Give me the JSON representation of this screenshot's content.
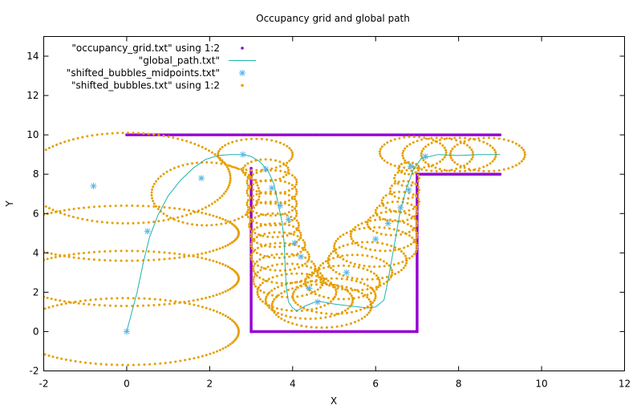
{
  "chart_data": {
    "type": "scatter",
    "title": "Occupancy grid and global path",
    "xlabel": "X",
    "ylabel": "Y",
    "xlim": [
      -2,
      12
    ],
    "ylim": [
      -2,
      15
    ],
    "xticks": [
      -2,
      0,
      2,
      4,
      6,
      8,
      10,
      12
    ],
    "yticks": [
      -2,
      0,
      2,
      4,
      6,
      8,
      10,
      12,
      14
    ],
    "legend_position": "top-left",
    "grid": false,
    "series": [
      {
        "name": "\"occupancy_grid.txt\" using 1:2",
        "style": "points",
        "color": "#9400d3",
        "segments": [
          [
            [
              0,
              10
            ],
            [
              9,
              10
            ]
          ],
          [
            [
              7,
              8
            ],
            [
              9,
              8
            ]
          ],
          [
            [
              3,
              8.3
            ],
            [
              3,
              0
            ]
          ],
          [
            [
              3,
              0
            ],
            [
              7,
              0
            ]
          ],
          [
            [
              7,
              0
            ],
            [
              7,
              8
            ]
          ]
        ]
      },
      {
        "name": "\"global_path.txt\"",
        "style": "line",
        "color": "#20b2aa",
        "points": [
          [
            0,
            0
          ],
          [
            0.1,
            0.8
          ],
          [
            0.25,
            2
          ],
          [
            0.4,
            3.5
          ],
          [
            0.55,
            4.8
          ],
          [
            0.75,
            5.9
          ],
          [
            1.0,
            6.9
          ],
          [
            1.3,
            7.7
          ],
          [
            1.6,
            8.3
          ],
          [
            1.9,
            8.75
          ],
          [
            2.2,
            8.95
          ],
          [
            2.5,
            9.0
          ],
          [
            2.8,
            9.0
          ],
          [
            3.0,
            8.9
          ],
          [
            3.2,
            8.65
          ],
          [
            3.4,
            8.2
          ],
          [
            3.55,
            7.5
          ],
          [
            3.65,
            6.5
          ],
          [
            3.75,
            5.5
          ],
          [
            3.8,
            4.4
          ],
          [
            3.82,
            3.2
          ],
          [
            3.85,
            2.2
          ],
          [
            3.9,
            1.5
          ],
          [
            4.0,
            1.2
          ],
          [
            4.1,
            1.05
          ],
          [
            4.3,
            1.3
          ],
          [
            4.6,
            1.55
          ],
          [
            5.0,
            1.4
          ],
          [
            5.4,
            1.3
          ],
          [
            5.8,
            1.2
          ],
          [
            6.0,
            1.25
          ],
          [
            6.2,
            1.6
          ],
          [
            6.3,
            2.6
          ],
          [
            6.4,
            3.8
          ],
          [
            6.5,
            5.0
          ],
          [
            6.6,
            6.2
          ],
          [
            6.75,
            7.3
          ],
          [
            6.9,
            8.2
          ],
          [
            7.1,
            8.8
          ],
          [
            7.5,
            9.0
          ],
          [
            8.0,
            8.95
          ],
          [
            8.5,
            9.0
          ],
          [
            9.0,
            9.0
          ]
        ]
      },
      {
        "name": "\"shifted_bubbles_midpoints.txt\"",
        "style": "star",
        "color": "#56b4e9",
        "points": [
          [
            0,
            0
          ],
          [
            -0.8,
            7.4
          ],
          [
            1.8,
            7.8
          ],
          [
            2.8,
            9.0
          ],
          [
            3.35,
            8.25
          ],
          [
            3.5,
            7.3
          ],
          [
            3.7,
            6.4
          ],
          [
            3.9,
            5.7
          ],
          [
            4.05,
            4.5
          ],
          [
            4.2,
            3.8
          ],
          [
            4.4,
            2.2
          ],
          [
            4.6,
            1.5
          ],
          [
            5.3,
            3.0
          ],
          [
            6.0,
            4.7
          ],
          [
            6.3,
            5.5
          ],
          [
            6.6,
            6.3
          ],
          [
            6.8,
            7.2
          ],
          [
            6.85,
            8.4
          ],
          [
            7.2,
            8.9
          ],
          [
            0.5,
            5.1
          ]
        ]
      },
      {
        "name": "\"shifted_bubbles.txt\" using 1:2",
        "style": "points",
        "color": "#e69f00",
        "circles": [
          [
            0,
            0,
            2.7,
            1.7
          ],
          [
            0,
            2.7,
            2.7,
            1.4
          ],
          [
            0,
            5.0,
            2.7,
            1.4
          ],
          [
            0,
            7.8,
            2.5,
            2.3
          ],
          [
            1.9,
            7.0,
            1.3,
            1.6
          ],
          [
            3.1,
            9.0,
            0.9,
            0.8
          ],
          [
            3.35,
            8.2,
            0.55,
            0.55
          ],
          [
            3.5,
            7.6,
            0.6,
            0.6
          ],
          [
            3.5,
            7.1,
            0.6,
            0.6
          ],
          [
            3.5,
            6.5,
            0.6,
            0.6
          ],
          [
            3.5,
            6.0,
            0.6,
            0.6
          ],
          [
            3.55,
            5.4,
            0.6,
            0.6
          ],
          [
            3.6,
            4.9,
            0.6,
            0.6
          ],
          [
            3.65,
            4.4,
            0.65,
            0.65
          ],
          [
            3.7,
            3.8,
            0.7,
            0.7
          ],
          [
            3.8,
            3.2,
            0.75,
            0.75
          ],
          [
            3.9,
            2.6,
            0.85,
            0.85
          ],
          [
            4.1,
            2.0,
            0.95,
            0.95
          ],
          [
            4.4,
            1.6,
            1.05,
            0.95
          ],
          [
            4.7,
            1.3,
            1.2,
            1.1
          ],
          [
            5.0,
            1.8,
            1.0,
            0.9
          ],
          [
            5.2,
            2.5,
            0.9,
            0.85
          ],
          [
            5.5,
            3.0,
            0.9,
            0.9
          ],
          [
            5.8,
            3.6,
            0.95,
            0.95
          ],
          [
            6.0,
            4.3,
            1.0,
            1.0
          ],
          [
            6.2,
            4.9,
            0.8,
            0.8
          ],
          [
            6.4,
            5.5,
            0.6,
            0.6
          ],
          [
            6.5,
            6.1,
            0.5,
            0.5
          ],
          [
            6.6,
            6.6,
            0.45,
            0.5
          ],
          [
            6.7,
            7.2,
            0.35,
            0.45
          ],
          [
            6.75,
            7.8,
            0.3,
            0.4
          ],
          [
            6.8,
            8.3,
            0.25,
            0.3
          ],
          [
            6.9,
            9.1,
            0.8,
            0.8
          ],
          [
            7.5,
            9.0,
            0.85,
            0.85
          ],
          [
            8.0,
            9.0,
            0.9,
            0.85
          ],
          [
            8.7,
            9.0,
            0.9,
            0.85
          ]
        ]
      }
    ]
  }
}
